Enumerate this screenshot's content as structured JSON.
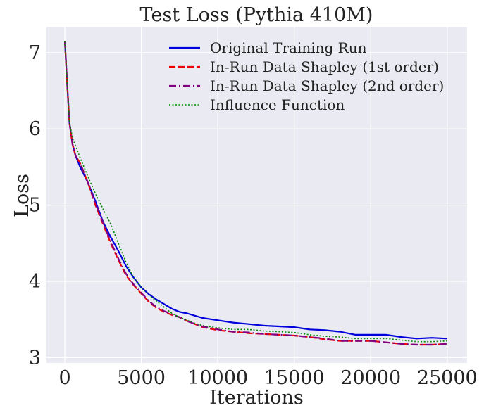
{
  "chart_data": {
    "type": "line",
    "title": "Test Loss (Pythia 410M)",
    "xlabel": "Iterations",
    "ylabel": "Loss",
    "xlim": [
      -1200,
      26300
    ],
    "ylim": [
      2.93,
      7.34
    ],
    "xticks": [
      0,
      5000,
      10000,
      15000,
      20000,
      25000
    ],
    "yticks": [
      3,
      4,
      5,
      6,
      7
    ],
    "grid": true,
    "legend_position": "top-right",
    "series": [
      {
        "name": "Original Training Run",
        "color": "#0000dd",
        "dash": "solid",
        "x": [
          0,
          150,
          300,
          500,
          700,
          1000,
          1500,
          2000,
          2500,
          3000,
          3500,
          4000,
          4500,
          5000,
          5500,
          6000,
          6500,
          7000,
          7500,
          8000,
          8500,
          9000,
          10000,
          11000,
          12000,
          13000,
          14000,
          15000,
          16000,
          17000,
          18000,
          19000,
          20000,
          21000,
          22000,
          23000,
          24000,
          25000
        ],
        "y": [
          7.15,
          6.6,
          6.08,
          5.8,
          5.65,
          5.5,
          5.3,
          5.05,
          4.78,
          4.58,
          4.4,
          4.2,
          4.05,
          3.92,
          3.83,
          3.76,
          3.7,
          3.64,
          3.6,
          3.58,
          3.55,
          3.52,
          3.49,
          3.46,
          3.44,
          3.42,
          3.41,
          3.4,
          3.37,
          3.36,
          3.34,
          3.3,
          3.3,
          3.3,
          3.27,
          3.25,
          3.26,
          3.25
        ]
      },
      {
        "name": "In-Run Data Shapley (1st order)",
        "color": "#ee0000",
        "dash": "dashed",
        "x": [
          0,
          150,
          300,
          500,
          700,
          1000,
          1500,
          2000,
          2500,
          3000,
          3500,
          4000,
          4500,
          5000,
          5500,
          6000,
          6500,
          7000,
          7500,
          8000,
          8500,
          9000,
          10000,
          11000,
          12000,
          13000,
          14000,
          15000,
          16000,
          17000,
          18000,
          19000,
          20000,
          21000,
          22000,
          23000,
          24000,
          25000
        ],
        "y": [
          7.15,
          6.6,
          6.08,
          5.8,
          5.65,
          5.55,
          5.3,
          5.0,
          4.75,
          4.5,
          4.28,
          4.08,
          3.95,
          3.84,
          3.73,
          3.65,
          3.6,
          3.56,
          3.53,
          3.48,
          3.44,
          3.4,
          3.36,
          3.34,
          3.32,
          3.31,
          3.3,
          3.29,
          3.27,
          3.24,
          3.22,
          3.22,
          3.22,
          3.2,
          3.18,
          3.17,
          3.17,
          3.18
        ]
      },
      {
        "name": "In-Run Data Shapley (2nd order)",
        "color": "#800080",
        "dash": "dashdot",
        "x": [
          0,
          150,
          300,
          500,
          700,
          1000,
          1500,
          2000,
          2500,
          3000,
          3500,
          4000,
          4500,
          5000,
          5500,
          6000,
          6500,
          7000,
          7500,
          8000,
          8500,
          9000,
          10000,
          11000,
          12000,
          13000,
          14000,
          15000,
          16000,
          17000,
          18000,
          19000,
          20000,
          21000,
          22000,
          23000,
          24000,
          25000
        ],
        "y": [
          7.15,
          6.6,
          6.08,
          5.8,
          5.65,
          5.55,
          5.3,
          5.02,
          4.77,
          4.52,
          4.3,
          4.1,
          3.96,
          3.85,
          3.74,
          3.66,
          3.61,
          3.57,
          3.53,
          3.48,
          3.44,
          3.41,
          3.37,
          3.34,
          3.33,
          3.31,
          3.3,
          3.29,
          3.27,
          3.25,
          3.22,
          3.22,
          3.22,
          3.2,
          3.18,
          3.17,
          3.17,
          3.18
        ]
      },
      {
        "name": "Influence Function",
        "color": "#008800",
        "dash": "dotted",
        "x": [
          0,
          150,
          300,
          500,
          700,
          1000,
          1500,
          2000,
          2500,
          3000,
          3500,
          4000,
          4500,
          5000,
          5500,
          6000,
          6500,
          7000,
          7500,
          8000,
          8500,
          9000,
          10000,
          11000,
          12000,
          13000,
          14000,
          15000,
          16000,
          17000,
          18000,
          19000,
          20000,
          21000,
          22000,
          23000,
          24000,
          25000
        ],
        "y": [
          7.15,
          6.6,
          6.1,
          5.88,
          5.78,
          5.62,
          5.38,
          5.15,
          4.95,
          4.75,
          4.5,
          4.25,
          4.05,
          3.92,
          3.82,
          3.74,
          3.66,
          3.58,
          3.53,
          3.49,
          3.45,
          3.42,
          3.39,
          3.37,
          3.37,
          3.35,
          3.34,
          3.33,
          3.3,
          3.28,
          3.27,
          3.25,
          3.25,
          3.25,
          3.23,
          3.21,
          3.21,
          3.22
        ]
      }
    ]
  }
}
